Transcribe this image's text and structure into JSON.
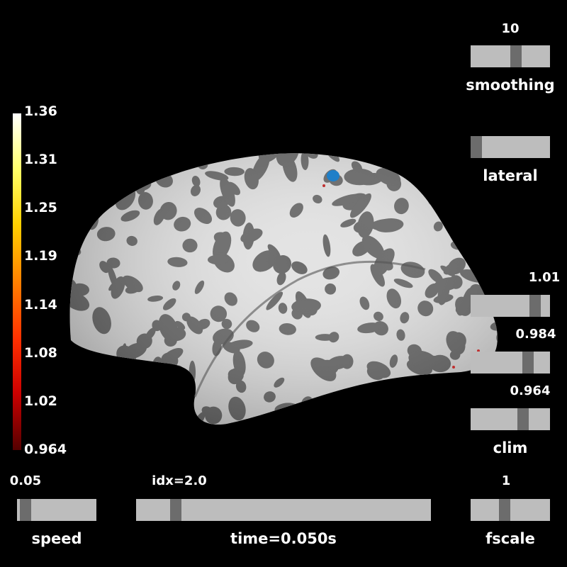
{
  "colorbar": {
    "ticks": [
      "1.36",
      "1.31",
      "1.25",
      "1.19",
      "1.14",
      "1.08",
      "1.02",
      "0.964"
    ],
    "colors": [
      "#ffffff",
      "#ffff66",
      "#ffd000",
      "#ff8000",
      "#ff3000",
      "#cc0000",
      "#550000"
    ]
  },
  "sliders": {
    "smoothing": {
      "value": "10",
      "label": "smoothing",
      "position": 0.58
    },
    "lateral": {
      "value": "",
      "label": "lateral",
      "position": 0.0
    },
    "clim_high": {
      "value": "1.01",
      "position": 0.86
    },
    "clim_mid": {
      "value": "0.984",
      "position": 0.76
    },
    "clim_low": {
      "value": "0.964",
      "position": 0.69
    },
    "clim_label": "clim",
    "speed": {
      "value": "0.05",
      "label": "speed",
      "position": 0.04
    },
    "time": {
      "value": "idx=2.0",
      "label": "time=0.050s",
      "position": 0.12
    },
    "fscale": {
      "value": "1",
      "label": "fscale",
      "position": 0.42
    }
  },
  "colors": {
    "background": "#000000",
    "track": "#bdbdbd",
    "handle": "#6c6c6c",
    "sulcus": "#666666",
    "gyrus": "#e6e6e6",
    "foci": "#1f7fc8"
  }
}
